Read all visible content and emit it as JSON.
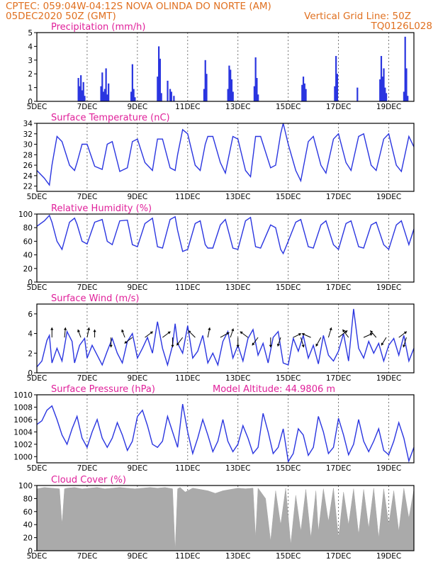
{
  "header": {
    "line1": "CPTEC:   059:04W-04:12S   NOVA OLINDA DO NORTE (AM)",
    "line2": "05DEC2020 50Z (GMT)",
    "grid_note": "Vertical Grid Line: 50Z",
    "run_code": "TQ0126L028"
  },
  "model_altitude": "Model Altitude: 44.9806 m",
  "colors": {
    "header": "#e07020",
    "panel_title": "#e0209a",
    "line": "#2a35e0",
    "cloud": "#aaaaaa",
    "grid": "#555555"
  },
  "x_axis": {
    "start_label": "5DEC",
    "day_ticks": [
      {
        "day": 7,
        "label": "7DEC"
      },
      {
        "day": 9,
        "label": "9DEC"
      },
      {
        "day": 11,
        "label": "11DEC"
      },
      {
        "day": 13,
        "label": "13DEC"
      },
      {
        "day": 15,
        "label": "15DEC"
      },
      {
        "day": 17,
        "label": "17DEC"
      },
      {
        "day": 19,
        "label": "19DEC"
      }
    ],
    "xlim_days": [
      5.0,
      20.0
    ]
  },
  "chart_data": [
    {
      "type": "bar",
      "title": "Precipitation (mm/h)",
      "ylim": [
        0,
        5
      ],
      "yticks": [
        0,
        1,
        2,
        3,
        4,
        5
      ],
      "grid": "dashed",
      "x": [
        6.65,
        6.7,
        6.75,
        6.8,
        6.85,
        6.9,
        7.55,
        7.6,
        7.65,
        7.7,
        7.75,
        7.8,
        7.85,
        8.75,
        8.8,
        8.85,
        8.9,
        9.8,
        9.85,
        9.9,
        9.95,
        10.2,
        10.3,
        10.35,
        10.45,
        11.65,
        11.7,
        11.75,
        12.6,
        12.65,
        12.7,
        12.75,
        12.8,
        13.65,
        13.7,
        13.75,
        13.8,
        15.55,
        15.6,
        15.65,
        15.7,
        16.85,
        16.9,
        16.95,
        17.75,
        18.65,
        18.7,
        18.75,
        18.8,
        18.85,
        18.9,
        19.6,
        19.65,
        19.7,
        19.75
      ],
      "values": [
        1.7,
        1.1,
        1.9,
        0.8,
        1.4,
        0.4,
        1.1,
        2.1,
        0.7,
        0.9,
        2.4,
        0.5,
        1.3,
        0.7,
        2.7,
        0.9,
        0.3,
        1.8,
        4.0,
        3.1,
        0.6,
        1.5,
        0.9,
        0.7,
        0.4,
        0.9,
        3.0,
        2.0,
        0.9,
        2.6,
        2.3,
        1.6,
        0.7,
        1.1,
        3.2,
        1.7,
        0.5,
        1.2,
        1.8,
        1.3,
        0.9,
        1.1,
        3.3,
        2.0,
        1.0,
        1.6,
        3.3,
        1.8,
        2.4,
        1.0,
        0.6,
        0.7,
        4.7,
        2.4,
        0.4
      ]
    },
    {
      "type": "line",
      "title": "Surface Temperature (nC)",
      "ylim": [
        21,
        34
      ],
      "yticks": [
        22,
        24,
        26,
        28,
        30,
        32,
        34
      ],
      "grid": "dashed",
      "x": [
        5.0,
        5.3,
        5.5,
        5.6,
        5.8,
        6.0,
        6.3,
        6.5,
        6.6,
        6.8,
        7.0,
        7.3,
        7.6,
        7.8,
        8.0,
        8.3,
        8.6,
        8.8,
        9.0,
        9.3,
        9.6,
        9.8,
        10.0,
        10.3,
        10.5,
        10.6,
        10.8,
        11.0,
        11.3,
        11.5,
        11.7,
        11.8,
        12.0,
        12.3,
        12.5,
        12.8,
        13.0,
        13.3,
        13.5,
        13.7,
        13.9,
        14.3,
        14.5,
        14.7,
        14.8,
        15.0,
        15.3,
        15.5,
        15.8,
        16.0,
        16.3,
        16.5,
        16.8,
        17.0,
        17.3,
        17.5,
        17.8,
        18.0,
        18.3,
        18.5,
        18.8,
        19.0,
        19.3,
        19.5,
        19.8,
        20.0
      ],
      "values": [
        25.0,
        23.5,
        22.2,
        26.0,
        31.5,
        30.5,
        26.0,
        25.0,
        26.5,
        30.0,
        30.0,
        25.8,
        25.2,
        30.0,
        30.5,
        24.8,
        25.5,
        30.5,
        31.0,
        26.5,
        25.0,
        31.0,
        31.0,
        25.5,
        25.0,
        28.0,
        32.8,
        32.0,
        26.0,
        25.0,
        30.0,
        31.5,
        31.5,
        26.5,
        24.5,
        31.5,
        31.0,
        25.0,
        23.8,
        31.5,
        31.5,
        25.5,
        26.0,
        32.0,
        34.0,
        30.0,
        25.0,
        23.0,
        30.5,
        31.5,
        26.0,
        24.5,
        31.0,
        32.0,
        26.5,
        25.0,
        31.5,
        32.0,
        26.0,
        25.0,
        31.0,
        32.0,
        26.0,
        24.8,
        31.5,
        29.5
      ]
    },
    {
      "type": "line",
      "title": "Relative Humidity (%)",
      "ylim": [
        0,
        100
      ],
      "yticks": [
        0,
        20,
        40,
        60,
        80,
        100
      ],
      "grid": "dashed",
      "x": [
        5.0,
        5.3,
        5.5,
        5.6,
        5.8,
        6.0,
        6.3,
        6.5,
        6.6,
        6.8,
        7.0,
        7.3,
        7.6,
        7.8,
        8.0,
        8.3,
        8.6,
        8.8,
        9.0,
        9.3,
        9.6,
        9.8,
        10.0,
        10.3,
        10.5,
        10.6,
        10.8,
        11.0,
        11.3,
        11.5,
        11.7,
        11.8,
        12.0,
        12.3,
        12.5,
        12.8,
        13.0,
        13.3,
        13.5,
        13.7,
        13.9,
        14.3,
        14.5,
        14.7,
        14.8,
        15.0,
        15.3,
        15.5,
        15.8,
        16.0,
        16.3,
        16.5,
        16.8,
        17.0,
        17.3,
        17.5,
        17.8,
        18.0,
        18.3,
        18.5,
        18.8,
        19.0,
        19.3,
        19.5,
        19.8,
        20.0
      ],
      "values": [
        82,
        90,
        98,
        88,
        60,
        48,
        88,
        94,
        85,
        60,
        56,
        88,
        92,
        60,
        55,
        90,
        91,
        55,
        52,
        86,
        94,
        52,
        50,
        92,
        96,
        76,
        45,
        48,
        86,
        90,
        55,
        50,
        50,
        84,
        92,
        50,
        48,
        90,
        95,
        52,
        50,
        84,
        80,
        48,
        42,
        60,
        88,
        92,
        52,
        50,
        84,
        90,
        55,
        48,
        86,
        90,
        52,
        50,
        84,
        88,
        55,
        48,
        84,
        90,
        55,
        78
      ]
    },
    {
      "type": "line",
      "title": "Surface Wind (m/s)",
      "ylim": [
        0,
        7
      ],
      "yticks": [
        0,
        2,
        4,
        6
      ],
      "grid": "dashed",
      "x": [
        5.0,
        5.2,
        5.4,
        5.5,
        5.6,
        5.8,
        6.0,
        6.2,
        6.4,
        6.5,
        6.7,
        6.9,
        7.0,
        7.2,
        7.4,
        7.6,
        7.8,
        8.0,
        8.2,
        8.4,
        8.6,
        8.8,
        9.0,
        9.2,
        9.4,
        9.6,
        9.8,
        10.0,
        10.2,
        10.4,
        10.5,
        10.6,
        10.8,
        11.0,
        11.2,
        11.4,
        11.6,
        11.8,
        12.0,
        12.2,
        12.4,
        12.6,
        12.8,
        13.0,
        13.2,
        13.4,
        13.6,
        13.8,
        14.0,
        14.2,
        14.4,
        14.6,
        14.8,
        15.0,
        15.2,
        15.4,
        15.6,
        15.8,
        16.0,
        16.2,
        16.4,
        16.6,
        16.8,
        17.0,
        17.2,
        17.4,
        17.6,
        17.8,
        18.0,
        18.2,
        18.4,
        18.6,
        18.8,
        19.0,
        19.2,
        19.4,
        19.6,
        19.8,
        20.0
      ],
      "values": [
        0.6,
        1.2,
        3.3,
        3.8,
        1.0,
        2.5,
        1.2,
        4.2,
        3.2,
        1.0,
        2.8,
        3.5,
        1.5,
        2.8,
        1.8,
        0.8,
        2.2,
        3.5,
        2.0,
        1.0,
        3.2,
        4.0,
        1.5,
        2.5,
        3.6,
        2.0,
        5.2,
        2.5,
        0.8,
        2.8,
        5.0,
        3.0,
        2.0,
        4.8,
        1.5,
        2.2,
        3.8,
        1.0,
        2.0,
        0.8,
        3.2,
        4.2,
        1.5,
        2.8,
        1.2,
        3.5,
        4.4,
        1.8,
        3.0,
        1.0,
        3.6,
        4.2,
        1.0,
        0.8,
        3.5,
        2.2,
        3.8,
        1.5,
        2.8,
        0.9,
        3.8,
        1.8,
        1.2,
        2.2,
        4.0,
        1.2,
        6.5,
        2.5,
        1.5,
        3.2,
        2.0,
        3.0,
        1.2,
        2.8,
        3.5,
        1.8,
        3.8,
        1.2,
        2.5
      ],
      "wind_vectors": [
        {
          "x": 5.6,
          "u": 0.0,
          "v": 1.0
        },
        {
          "x": 6.1,
          "u": 0.1,
          "v": 1.0
        },
        {
          "x": 6.75,
          "u": -0.3,
          "v": 0.8
        },
        {
          "x": 7.0,
          "u": 0.2,
          "v": 1.0
        },
        {
          "x": 7.3,
          "u": 0.0,
          "v": 0.8
        },
        {
          "x": 7.95,
          "u": 0.0,
          "v": -1.0
        },
        {
          "x": 8.5,
          "u": -0.3,
          "v": 0.8
        },
        {
          "x": 8.8,
          "u": -0.8,
          "v": -0.6
        },
        {
          "x": 9.3,
          "u": 0.8,
          "v": 0.6
        },
        {
          "x": 10.0,
          "u": 0.8,
          "v": 0.6
        },
        {
          "x": 10.4,
          "u": 0.0,
          "v": -1.0
        },
        {
          "x": 10.8,
          "u": -0.6,
          "v": -0.8
        },
        {
          "x": 11.3,
          "u": -0.7,
          "v": 0.7
        },
        {
          "x": 11.8,
          "u": 0.2,
          "v": 1.0
        },
        {
          "x": 12.3,
          "u": 0.9,
          "v": 0.5
        },
        {
          "x": 12.7,
          "u": 0.3,
          "v": 0.9
        },
        {
          "x": 13.0,
          "u": 0.0,
          "v": -1.0
        },
        {
          "x": 13.4,
          "u": -0.8,
          "v": 0.6
        },
        {
          "x": 13.8,
          "u": -0.6,
          "v": -0.8
        },
        {
          "x": 14.3,
          "u": 0.0,
          "v": -1.0
        },
        {
          "x": 14.7,
          "u": -0.3,
          "v": -0.9
        },
        {
          "x": 15.2,
          "u": 0.8,
          "v": 0.4
        },
        {
          "x": 15.5,
          "u": 0.3,
          "v": -1.0
        },
        {
          "x": 15.9,
          "u": -0.9,
          "v": 0.4
        },
        {
          "x": 16.3,
          "u": -0.5,
          "v": -0.9
        },
        {
          "x": 16.6,
          "u": 0.3,
          "v": 1.0
        },
        {
          "x": 17.0,
          "u": 0.9,
          "v": 0.7
        },
        {
          "x": 17.4,
          "u": -0.6,
          "v": 0.8
        },
        {
          "x": 18.0,
          "u": 0.9,
          "v": 0.4
        },
        {
          "x": 18.5,
          "u": -0.6,
          "v": 0.7
        },
        {
          "x": 18.9,
          "u": -0.5,
          "v": -0.8
        },
        {
          "x": 19.4,
          "u": 0.8,
          "v": 0.6
        },
        {
          "x": 19.7,
          "u": -0.3,
          "v": -1.0
        }
      ]
    },
    {
      "type": "line",
      "title": "Surface Pressure (hPa)",
      "ylim": [
        999,
        1010
      ],
      "yticks": [
        1000,
        1002,
        1004,
        1006,
        1008,
        1010
      ],
      "grid": "dashed",
      "x": [
        5.0,
        5.2,
        5.4,
        5.6,
        5.8,
        6.0,
        6.2,
        6.4,
        6.6,
        6.8,
        7.0,
        7.2,
        7.4,
        7.6,
        7.8,
        8.0,
        8.2,
        8.4,
        8.6,
        8.8,
        9.0,
        9.2,
        9.4,
        9.6,
        9.8,
        10.0,
        10.2,
        10.4,
        10.6,
        10.8,
        11.0,
        11.2,
        11.4,
        11.6,
        11.8,
        12.0,
        12.2,
        12.4,
        12.6,
        12.8,
        13.0,
        13.2,
        13.4,
        13.6,
        13.8,
        14.0,
        14.2,
        14.4,
        14.6,
        14.8,
        15.0,
        15.2,
        15.4,
        15.6,
        15.8,
        16.0,
        16.2,
        16.4,
        16.6,
        16.8,
        17.0,
        17.2,
        17.4,
        17.6,
        17.8,
        18.0,
        18.2,
        18.4,
        18.6,
        18.8,
        19.0,
        19.2,
        19.4,
        19.6,
        19.8,
        20.0
      ],
      "values": [
        1005.2,
        1005.8,
        1007.5,
        1008.2,
        1006.0,
        1003.5,
        1002.0,
        1004.5,
        1006.5,
        1003.0,
        1001.5,
        1004.0,
        1006.0,
        1003.0,
        1001.5,
        1003.0,
        1005.5,
        1003.5,
        1001.0,
        1002.5,
        1006.5,
        1007.5,
        1005.0,
        1002.0,
        1001.5,
        1002.5,
        1006.5,
        1004.0,
        1001.5,
        1008.5,
        1004.0,
        1000.5,
        1003.0,
        1006.0,
        1003.5,
        1000.8,
        1002.5,
        1006.0,
        1002.5,
        1000.8,
        1002.0,
        1005.0,
        1003.0,
        1000.5,
        1001.5,
        1007.0,
        1004.0,
        1000.5,
        1001.5,
        1004.5,
        999.2,
        1000.5,
        1004.5,
        1003.5,
        1000.2,
        1001.5,
        1006.5,
        1004.0,
        1000.5,
        1001.5,
        1006.2,
        1003.5,
        1000.3,
        1002.0,
        1006.0,
        1002.5,
        1000.8,
        1002.5,
        1004.5,
        1001.0,
        1000.3,
        1002.5,
        1005.5,
        1003.0,
        999.3,
        1001.5
      ]
    },
    {
      "type": "area",
      "title": "Cloud Cover (%)",
      "ylim": [
        0,
        100
      ],
      "yticks": [
        0,
        20,
        40,
        60,
        80,
        100
      ],
      "grid": "dashed",
      "x": [
        5.0,
        5.3,
        5.6,
        5.9,
        6.0,
        6.1,
        6.2,
        6.5,
        6.8,
        7.1,
        7.4,
        7.7,
        8.0,
        8.3,
        8.6,
        8.9,
        9.2,
        9.5,
        9.8,
        10.1,
        10.4,
        10.5,
        10.6,
        10.7,
        10.9,
        11.2,
        11.5,
        11.8,
        12.1,
        12.4,
        12.7,
        13.0,
        13.3,
        13.6,
        13.7,
        13.8,
        14.1,
        14.3,
        14.5,
        14.7,
        14.9,
        15.1,
        15.3,
        15.5,
        15.7,
        15.9,
        16.1,
        16.2,
        16.4,
        16.6,
        16.8,
        17.0,
        17.2,
        17.4,
        17.6,
        17.8,
        18.0,
        18.2,
        18.4,
        18.6,
        18.8,
        19.0,
        19.2,
        19.4,
        19.6,
        19.8,
        20.0
      ],
      "values": [
        95,
        97,
        96,
        95,
        40,
        95,
        96,
        97,
        95,
        96,
        97,
        95,
        96,
        97,
        96,
        95,
        96,
        97,
        96,
        97,
        95,
        0,
        95,
        97,
        90,
        96,
        94,
        92,
        88,
        92,
        94,
        96,
        95,
        96,
        20,
        96,
        80,
        15,
        92,
        40,
        96,
        10,
        85,
        30,
        94,
        20,
        92,
        30,
        95,
        45,
        96,
        20,
        90,
        40,
        95,
        25,
        94,
        35,
        96,
        20,
        95,
        40,
        92,
        30,
        96,
        50,
        94
      ]
    }
  ]
}
